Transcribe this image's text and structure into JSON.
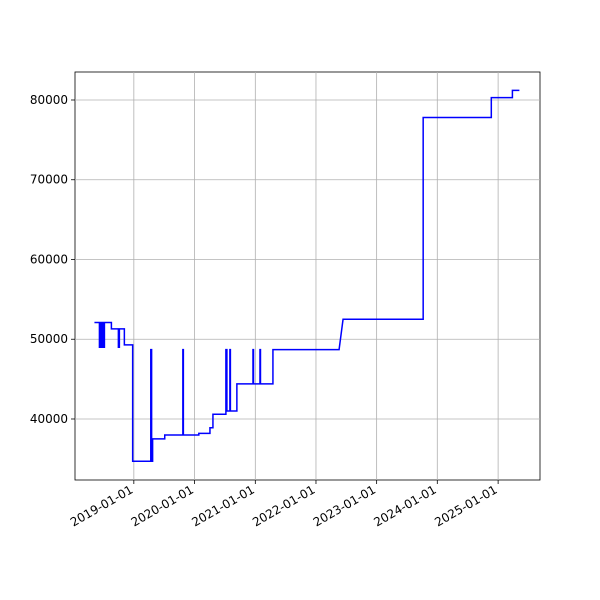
{
  "chart_data": {
    "type": "line",
    "color": "#0000ff",
    "grid": true,
    "x": [
      "2018-05-09",
      "2018-06-08",
      "2018-06-08",
      "2018-06-14",
      "2018-06-14",
      "2018-06-20",
      "2018-06-20",
      "2018-06-26",
      "2018-06-26",
      "2018-07-02",
      "2018-07-02",
      "2018-07-08",
      "2018-07-08",
      "2018-08-19",
      "2018-08-19",
      "2018-09-30",
      "2018-09-30",
      "2018-10-06",
      "2018-10-06",
      "2018-11-05",
      "2018-11-05",
      "2018-12-25",
      "2018-12-25",
      "2019-04-13",
      "2019-04-13",
      "2019-04-18",
      "2019-04-18",
      "2019-04-24",
      "2019-04-24",
      "2019-07-06",
      "2019-07-06",
      "2019-10-23",
      "2019-10-23",
      "2019-10-26",
      "2019-10-26",
      "2020-01-27",
      "2020-01-27",
      "2020-04-03",
      "2020-04-03",
      "2020-04-21",
      "2020-04-21",
      "2020-07-08",
      "2020-07-08",
      "2020-07-14",
      "2020-07-14",
      "2020-08-01",
      "2020-08-01",
      "2020-08-04",
      "2020-08-04",
      "2020-09-12",
      "2020-09-12",
      "2020-12-18",
      "2020-12-18",
      "2020-12-21",
      "2020-12-21",
      "2021-01-29",
      "2021-01-29",
      "2021-02-01",
      "2021-02-01",
      "2021-04-17",
      "2021-04-17",
      "2022-05-20",
      "2022-06-13",
      "2023-10-08",
      "2023-10-08",
      "2024-11-21",
      "2024-11-21",
      "2025-03-28",
      "2025-03-28",
      "2025-05-09"
    ],
    "values": [
      52100,
      52100,
      49000,
      49000,
      52100,
      52100,
      49000,
      49000,
      52100,
      52100,
      49000,
      49000,
      52100,
      52100,
      51300,
      51300,
      49000,
      49000,
      51300,
      51300,
      49300,
      49300,
      34700,
      34700,
      48700,
      48700,
      34700,
      34700,
      37500,
      37500,
      38000,
      38000,
      48700,
      48700,
      38000,
      38000,
      38200,
      38200,
      38900,
      38900,
      40600,
      40600,
      48700,
      48700,
      41000,
      41000,
      48700,
      48700,
      41000,
      41000,
      44400,
      44400,
      48700,
      48700,
      44400,
      44400,
      48700,
      48700,
      44400,
      44400,
      48700,
      48700,
      52500,
      52500,
      77800,
      77800,
      80300,
      80300,
      81200,
      81200
    ],
    "xlim": [
      "2018-01-12",
      "2025-09-10"
    ],
    "xticks": [
      "2019-01-01",
      "2020-01-01",
      "2021-01-01",
      "2022-01-01",
      "2023-01-01",
      "2024-01-01",
      "2025-01-01"
    ],
    "ylim": [
      32350,
      83510
    ],
    "yticks": [
      40000,
      50000,
      60000,
      70000,
      80000
    ]
  }
}
